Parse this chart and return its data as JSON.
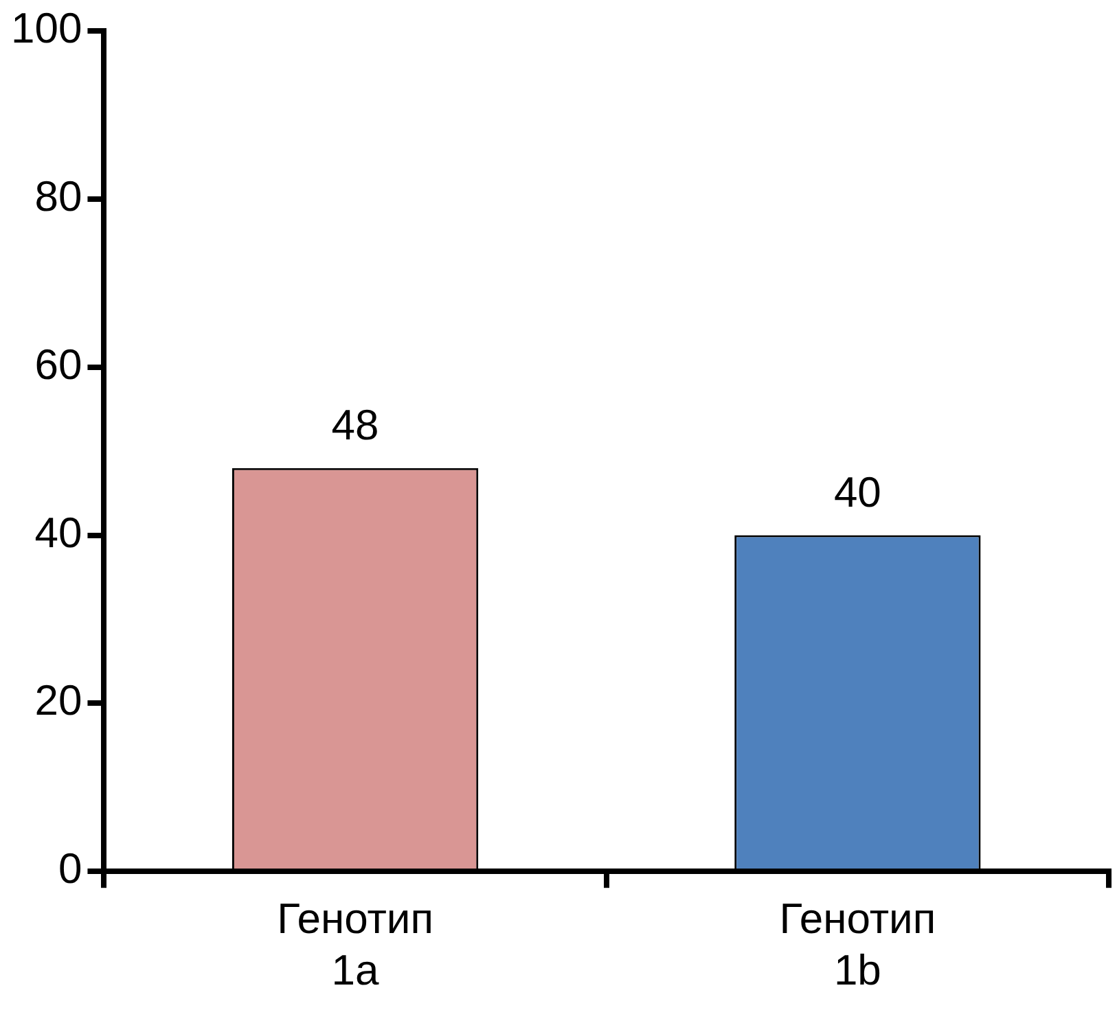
{
  "chart_data": {
    "type": "bar",
    "categories": [
      "Генотип 1a",
      "Генотип 1b"
    ],
    "colors": [
      "#d99694",
      "#4f81bd"
    ],
    "values": [
      48,
      40
    ],
    "ylim": [
      0,
      100
    ],
    "yticks": [
      0,
      20,
      40,
      60,
      80,
      100
    ],
    "grid": false,
    "legend": false,
    "data_labels": true
  }
}
